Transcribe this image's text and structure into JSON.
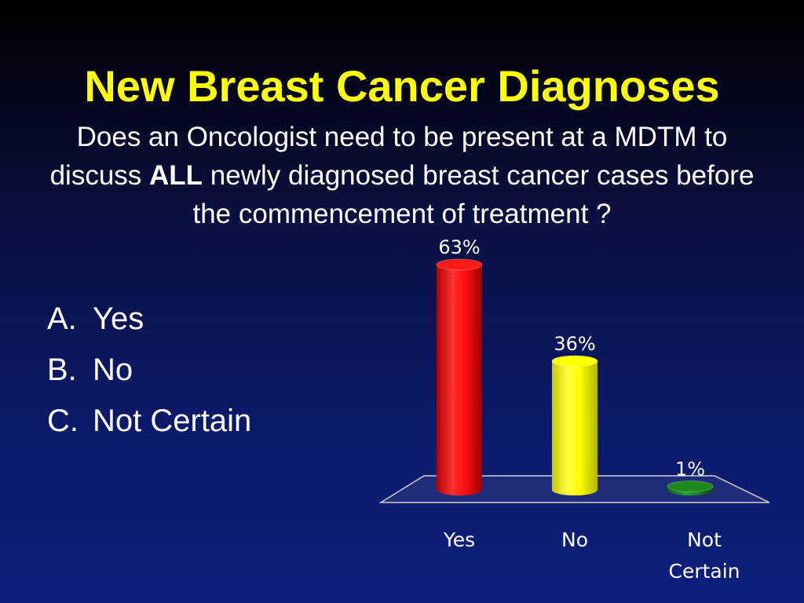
{
  "slide": {
    "title": "New Breast Cancer Diagnoses",
    "question_part1": "Does an Oncologist need to be present at a MDTM to discuss ",
    "question_emphasis": "ALL",
    "question_part2": " newly diagnosed breast cancer cases before the commencement of treatment ?",
    "options": [
      {
        "letter": "A.",
        "label": "Yes"
      },
      {
        "letter": "B.",
        "label": "No"
      },
      {
        "letter": "C.",
        "label": "Not Certain"
      }
    ]
  },
  "colors": {
    "title": "#ffff00",
    "text": "#ffffff",
    "bar_yes": "#ff1a1a",
    "bar_no": "#ffff00",
    "bar_not_certain": "#1c8a1c"
  },
  "chart_data": {
    "type": "bar",
    "categories": [
      "Yes",
      "No",
      "Not Certain"
    ],
    "category_lines": [
      [
        "Yes"
      ],
      [
        "No"
      ],
      [
        "Not",
        "Certain"
      ]
    ],
    "values": [
      63,
      36,
      1
    ],
    "data_labels": [
      "63%",
      "36%",
      "1%"
    ],
    "unit": "%",
    "ylim": [
      0,
      63
    ],
    "grid": false,
    "legend": "none",
    "style": "3d-cylinder"
  }
}
